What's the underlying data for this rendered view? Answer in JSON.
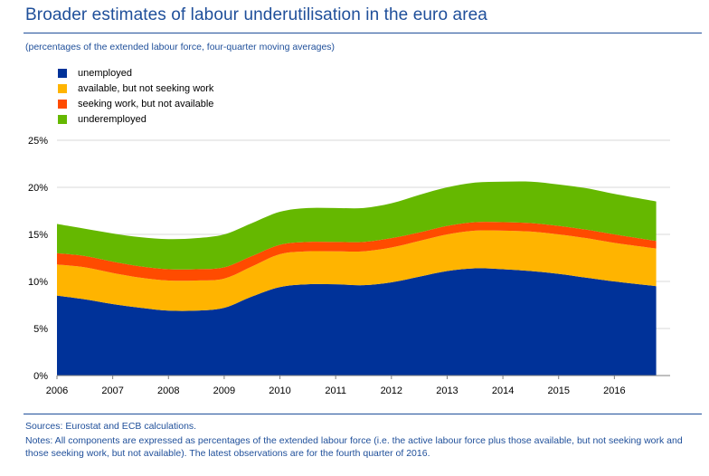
{
  "header": {
    "title": "Broader estimates of labour underutilisation in the euro area",
    "subtitle": "(percentages of the extended labour force, four-quarter moving averages)"
  },
  "footer": {
    "sources": "Sources: Eurostat and ECB calculations.",
    "notes": "Notes: All components are expressed as percentages of the extended labour force (i.e. the active labour force plus those available, but not seeking work and those seeking work, but not available). The latest observations are for the fourth quarter of 2016."
  },
  "chart_data": {
    "type": "area",
    "stacked": true,
    "x": [
      2006.0,
      2006.5,
      2007.0,
      2007.5,
      2008.0,
      2008.5,
      2009.0,
      2009.5,
      2010.0,
      2010.5,
      2011.0,
      2011.5,
      2012.0,
      2012.5,
      2013.0,
      2013.5,
      2014.0,
      2014.5,
      2015.0,
      2015.5,
      2016.0,
      2016.75
    ],
    "x_ticks": [
      "2006",
      "2007",
      "2008",
      "2009",
      "2010",
      "2011",
      "2012",
      "2013",
      "2014",
      "2015",
      "2016"
    ],
    "y_ticks": [
      "0%",
      "5%",
      "10%",
      "15%",
      "20%",
      "25%"
    ],
    "ylim": [
      0,
      25
    ],
    "grid": true,
    "legend_position": "top-left",
    "series": [
      {
        "name": "unemployed",
        "color": "#003299",
        "values": [
          8.5,
          8.1,
          7.6,
          7.2,
          6.9,
          6.9,
          7.2,
          8.4,
          9.4,
          9.7,
          9.7,
          9.6,
          9.9,
          10.5,
          11.1,
          11.4,
          11.3,
          11.1,
          10.8,
          10.4,
          10.0,
          9.5
        ]
      },
      {
        "name": "available, but not seeking work",
        "color": "#ffb400",
        "values": [
          3.3,
          3.4,
          3.3,
          3.2,
          3.2,
          3.2,
          3.1,
          3.2,
          3.5,
          3.5,
          3.5,
          3.6,
          3.7,
          3.8,
          3.9,
          4.0,
          4.1,
          4.2,
          4.2,
          4.2,
          4.1,
          4.0
        ]
      },
      {
        "name": "seeking work, but not available",
        "color": "#ff4b00",
        "values": [
          1.2,
          1.2,
          1.2,
          1.2,
          1.2,
          1.2,
          1.2,
          1.1,
          1.0,
          1.0,
          1.0,
          1.0,
          1.0,
          0.9,
          0.9,
          0.9,
          0.9,
          0.9,
          0.9,
          0.9,
          0.9,
          0.8
        ]
      },
      {
        "name": "underemployed",
        "color": "#65b800",
        "values": [
          3.1,
          2.9,
          3.0,
          3.1,
          3.2,
          3.3,
          3.5,
          3.5,
          3.5,
          3.6,
          3.6,
          3.6,
          3.7,
          4.0,
          4.1,
          4.2,
          4.3,
          4.4,
          4.4,
          4.4,
          4.3,
          4.2
        ]
      }
    ]
  }
}
